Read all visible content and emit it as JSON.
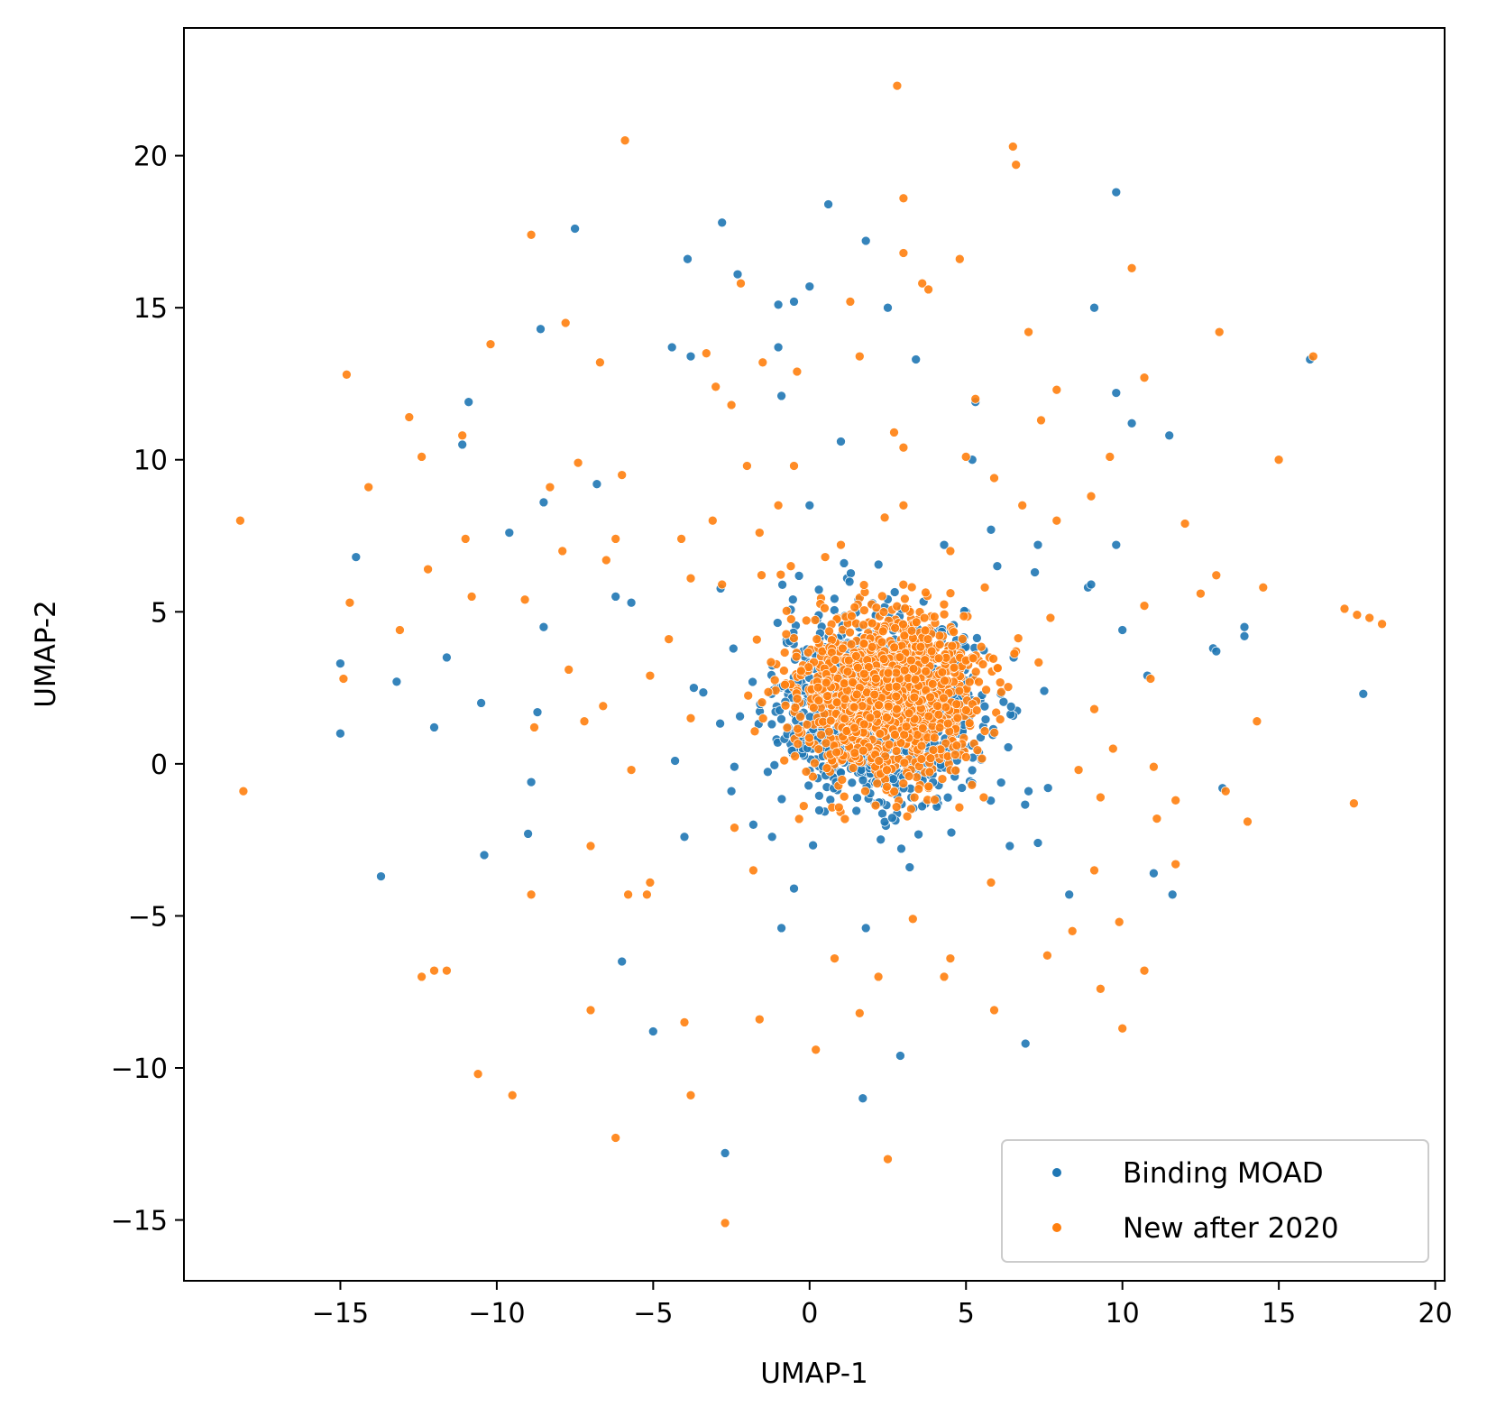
{
  "chart_data": {
    "type": "scatter",
    "title": "",
    "xlabel": "UMAP-1",
    "ylabel": "UMAP-2",
    "xlim": [
      -20,
      20.3
    ],
    "ylim": [
      -17,
      24.2
    ],
    "xticks": [
      -15,
      -10,
      -5,
      0,
      5,
      10,
      15,
      20
    ],
    "yticks": [
      -15,
      -10,
      -5,
      0,
      5,
      10,
      15,
      20
    ],
    "xtick_labels": [
      "−15",
      "−10",
      "−5",
      "0",
      "5",
      "10",
      "15",
      "20"
    ],
    "ytick_labels": [
      "−15",
      "−10",
      "−5",
      "0",
      "5",
      "10",
      "15",
      "20"
    ],
    "grid": false,
    "legend_position": "lower-right",
    "series": [
      {
        "name": "Binding MOAD",
        "color": "#1f77b4",
        "core": {
          "center": [
            2.2,
            1.8
          ],
          "spread": [
            1.6,
            1.5
          ],
          "count": 1100
        },
        "points": [
          [
            -15.0,
            3.3
          ],
          [
            -15.0,
            1.0
          ],
          [
            -14.5,
            6.8
          ],
          [
            -13.7,
            -3.7
          ],
          [
            -13.2,
            2.7
          ],
          [
            -12.0,
            1.2
          ],
          [
            -11.6,
            3.5
          ],
          [
            -11.1,
            10.5
          ],
          [
            -10.9,
            11.9
          ],
          [
            -10.5,
            2.0
          ],
          [
            -10.4,
            -3.0
          ],
          [
            -9.6,
            7.6
          ],
          [
            -9.0,
            -2.3
          ],
          [
            -8.6,
            14.3
          ],
          [
            -8.5,
            4.5
          ],
          [
            -8.7,
            1.7
          ],
          [
            -8.9,
            -0.6
          ],
          [
            -8.5,
            8.6
          ],
          [
            -7.5,
            17.6
          ],
          [
            -6.8,
            9.2
          ],
          [
            -6.2,
            5.5
          ],
          [
            -5.7,
            5.3
          ],
          [
            -6.0,
            -6.5
          ],
          [
            -5.0,
            -8.8
          ],
          [
            -4.4,
            13.7
          ],
          [
            -4.3,
            0.1
          ],
          [
            -3.9,
            16.6
          ],
          [
            -3.8,
            13.4
          ],
          [
            -4.0,
            -2.4
          ],
          [
            -3.7,
            2.5
          ],
          [
            -2.8,
            17.8
          ],
          [
            -2.7,
            -12.8
          ],
          [
            -2.3,
            16.1
          ],
          [
            -2.5,
            -0.9
          ],
          [
            -1.8,
            -2.0
          ],
          [
            -1.2,
            -2.4
          ],
          [
            -1.0,
            15.1
          ],
          [
            -1.0,
            13.7
          ],
          [
            -0.9,
            12.1
          ],
          [
            -0.9,
            -5.4
          ],
          [
            -0.5,
            15.2
          ],
          [
            -0.5,
            -4.1
          ],
          [
            0.0,
            15.7
          ],
          [
            0.0,
            8.5
          ],
          [
            0.6,
            18.4
          ],
          [
            1.0,
            10.6
          ],
          [
            1.1,
            6.6
          ],
          [
            1.2,
            6.1
          ],
          [
            1.7,
            -11.0
          ],
          [
            1.8,
            17.2
          ],
          [
            1.8,
            -5.4
          ],
          [
            2.5,
            15.0
          ],
          [
            2.9,
            -9.6
          ],
          [
            3.2,
            -3.4
          ],
          [
            3.4,
            13.3
          ],
          [
            4.3,
            7.2
          ],
          [
            5.0,
            5.0
          ],
          [
            5.2,
            10.0
          ],
          [
            5.3,
            11.9
          ],
          [
            5.8,
            7.7
          ],
          [
            6.0,
            6.5
          ],
          [
            6.4,
            -2.7
          ],
          [
            6.9,
            -9.2
          ],
          [
            7.2,
            6.3
          ],
          [
            7.3,
            -2.6
          ],
          [
            7.3,
            7.2
          ],
          [
            7.5,
            2.4
          ],
          [
            8.3,
            -4.3
          ],
          [
            8.9,
            5.8
          ],
          [
            9.0,
            5.9
          ],
          [
            9.1,
            15.0
          ],
          [
            9.8,
            18.8
          ],
          [
            9.8,
            12.2
          ],
          [
            9.8,
            7.2
          ],
          [
            10.0,
            4.4
          ],
          [
            10.3,
            11.2
          ],
          [
            10.8,
            2.9
          ],
          [
            11.0,
            -3.6
          ],
          [
            11.5,
            10.8
          ],
          [
            11.6,
            -4.3
          ],
          [
            12.9,
            3.8
          ],
          [
            13.0,
            3.7
          ],
          [
            13.2,
            -0.8
          ],
          [
            13.9,
            4.5
          ],
          [
            13.9,
            4.2
          ],
          [
            16.0,
            13.3
          ],
          [
            17.7,
            2.3
          ]
        ]
      },
      {
        "name": "New after 2020",
        "color": "#ff7f0e",
        "core": {
          "center": [
            2.4,
            2.2
          ],
          "spread": [
            1.5,
            1.4
          ],
          "count": 1300
        },
        "points": [
          [
            -18.2,
            8.0
          ],
          [
            -18.1,
            -0.9
          ],
          [
            -14.8,
            12.8
          ],
          [
            -14.9,
            2.8
          ],
          [
            -14.7,
            5.3
          ],
          [
            -14.1,
            9.1
          ],
          [
            -13.1,
            4.4
          ],
          [
            -12.8,
            11.4
          ],
          [
            -12.4,
            10.1
          ],
          [
            -12.2,
            6.4
          ],
          [
            -12.4,
            -7.0
          ],
          [
            -12.0,
            -6.8
          ],
          [
            -11.6,
            -6.8
          ],
          [
            -11.1,
            10.8
          ],
          [
            -11.0,
            7.4
          ],
          [
            -10.8,
            5.5
          ],
          [
            -10.6,
            -10.2
          ],
          [
            -10.2,
            13.8
          ],
          [
            -9.5,
            -10.9
          ],
          [
            -9.1,
            5.4
          ],
          [
            -8.9,
            17.4
          ],
          [
            -8.9,
            -4.3
          ],
          [
            -8.8,
            1.2
          ],
          [
            -8.3,
            9.1
          ],
          [
            -7.9,
            7.0
          ],
          [
            -7.8,
            14.5
          ],
          [
            -7.7,
            3.1
          ],
          [
            -7.4,
            9.9
          ],
          [
            -7.2,
            1.4
          ],
          [
            -7.0,
            -2.7
          ],
          [
            -7.0,
            -8.1
          ],
          [
            -6.7,
            13.2
          ],
          [
            -6.5,
            6.7
          ],
          [
            -6.6,
            1.9
          ],
          [
            -6.2,
            7.4
          ],
          [
            -6.2,
            -12.3
          ],
          [
            -6.0,
            9.5
          ],
          [
            -5.9,
            20.5
          ],
          [
            -5.8,
            -4.3
          ],
          [
            -5.7,
            -0.2
          ],
          [
            -5.2,
            -4.3
          ],
          [
            -5.1,
            2.9
          ],
          [
            -5.1,
            -3.9
          ],
          [
            -4.5,
            4.1
          ],
          [
            -4.1,
            7.4
          ],
          [
            -4.0,
            -8.5
          ],
          [
            -3.8,
            6.1
          ],
          [
            -3.8,
            1.5
          ],
          [
            -3.8,
            -10.9
          ],
          [
            -3.3,
            13.5
          ],
          [
            -3.0,
            12.4
          ],
          [
            -3.1,
            8.0
          ],
          [
            -2.8,
            5.9
          ],
          [
            -2.7,
            -15.1
          ],
          [
            -2.5,
            11.8
          ],
          [
            -2.4,
            -2.1
          ],
          [
            -2.2,
            15.8
          ],
          [
            -2.0,
            9.8
          ],
          [
            -1.8,
            -3.5
          ],
          [
            -1.6,
            -8.4
          ],
          [
            -1.6,
            7.6
          ],
          [
            -1.5,
            13.2
          ],
          [
            -1.0,
            8.5
          ],
          [
            -0.6,
            6.5
          ],
          [
            -0.5,
            9.8
          ],
          [
            -0.4,
            12.9
          ],
          [
            0.2,
            -9.4
          ],
          [
            0.5,
            6.8
          ],
          [
            0.8,
            -6.4
          ],
          [
            1.0,
            7.2
          ],
          [
            1.3,
            15.2
          ],
          [
            1.6,
            13.4
          ],
          [
            1.6,
            -8.2
          ],
          [
            2.2,
            -7.0
          ],
          [
            2.4,
            8.1
          ],
          [
            2.5,
            -13.0
          ],
          [
            2.7,
            10.9
          ],
          [
            2.8,
            22.3
          ],
          [
            3.0,
            18.6
          ],
          [
            3.0,
            16.8
          ],
          [
            3.0,
            10.4
          ],
          [
            3.0,
            8.5
          ],
          [
            3.3,
            -5.1
          ],
          [
            3.6,
            15.8
          ],
          [
            3.8,
            15.6
          ],
          [
            4.3,
            -7.0
          ],
          [
            4.5,
            7.0
          ],
          [
            4.5,
            -6.4
          ],
          [
            4.8,
            16.6
          ],
          [
            5.0,
            10.1
          ],
          [
            5.3,
            12.0
          ],
          [
            5.6,
            5.8
          ],
          [
            5.9,
            9.4
          ],
          [
            5.9,
            -8.1
          ],
          [
            5.8,
            -3.9
          ],
          [
            6.5,
            20.3
          ],
          [
            6.6,
            19.7
          ],
          [
            6.6,
            3.7
          ],
          [
            6.8,
            8.5
          ],
          [
            7.0,
            14.2
          ],
          [
            7.4,
            11.3
          ],
          [
            7.6,
            -6.3
          ],
          [
            7.7,
            4.8
          ],
          [
            7.9,
            12.3
          ],
          [
            7.9,
            8.0
          ],
          [
            8.4,
            -5.5
          ],
          [
            8.6,
            -0.2
          ],
          [
            9.0,
            8.8
          ],
          [
            9.1,
            1.8
          ],
          [
            9.1,
            -3.5
          ],
          [
            9.3,
            -1.1
          ],
          [
            9.3,
            -7.4
          ],
          [
            9.6,
            10.1
          ],
          [
            9.7,
            0.5
          ],
          [
            9.9,
            -5.2
          ],
          [
            10.0,
            -8.7
          ],
          [
            10.3,
            16.3
          ],
          [
            10.7,
            5.2
          ],
          [
            10.7,
            -6.8
          ],
          [
            10.7,
            12.7
          ],
          [
            10.9,
            2.8
          ],
          [
            11.0,
            -0.1
          ],
          [
            11.1,
            -1.8
          ],
          [
            11.7,
            -3.3
          ],
          [
            11.7,
            -1.2
          ],
          [
            12.0,
            7.9
          ],
          [
            12.5,
            5.6
          ],
          [
            13.0,
            6.2
          ],
          [
            13.1,
            14.2
          ],
          [
            13.3,
            -0.9
          ],
          [
            14.0,
            -1.9
          ],
          [
            14.3,
            1.4
          ],
          [
            14.5,
            5.8
          ],
          [
            15.0,
            10.0
          ],
          [
            16.1,
            13.4
          ],
          [
            17.1,
            5.1
          ],
          [
            17.4,
            -1.3
          ],
          [
            17.5,
            4.9
          ],
          [
            17.9,
            4.8
          ],
          [
            18.3,
            4.6
          ]
        ]
      }
    ]
  }
}
